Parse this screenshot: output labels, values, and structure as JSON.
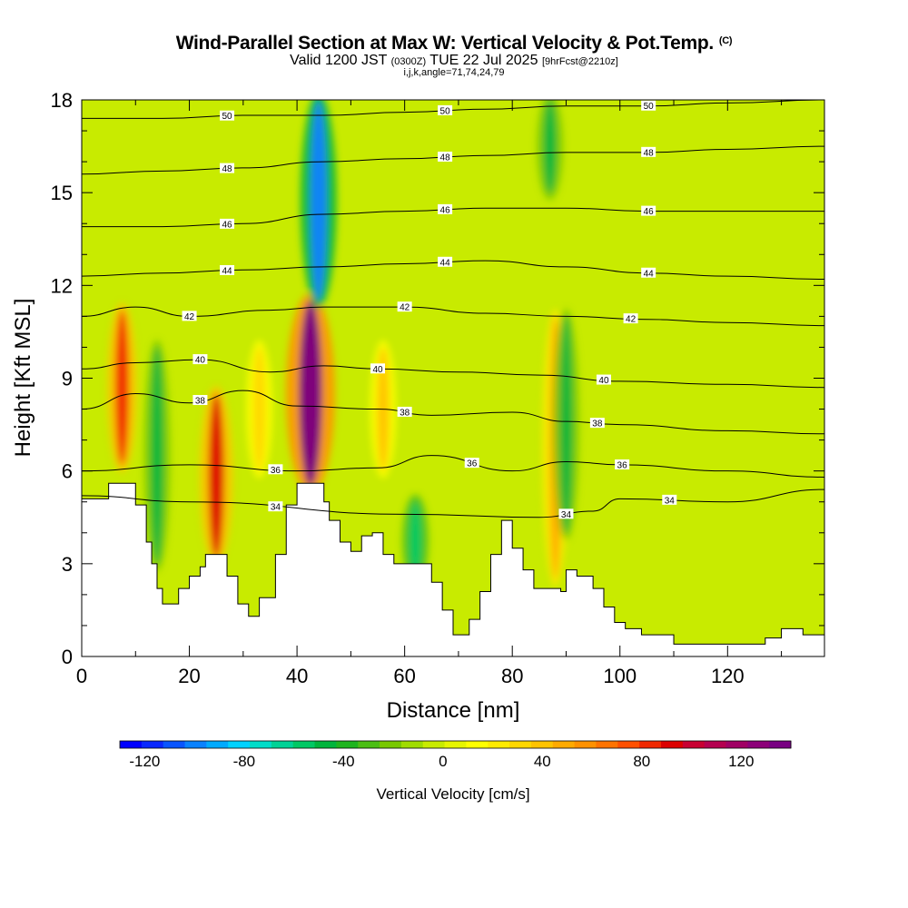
{
  "header": {
    "title": "Wind-Parallel Section at Max W: Vertical Velocity & Pot.Temp.",
    "copyright_mark": "(C)",
    "valid_prefix": "Valid 1200 JST",
    "valid_utc": "(0300Z)",
    "valid_date": "TUE 22 Jul 2025",
    "forecast_info": "[9hrFcst@2210z]",
    "index_info": "i,j,k,angle=71,74,24,79"
  },
  "chart_data": {
    "type": "heatmap",
    "title": "Wind-Parallel Section at Max W: Vertical Velocity & Pot.Temp.",
    "xlabel": "Distance [nm]",
    "ylabel": "Height [Kft MSL]",
    "xlim": [
      0,
      138
    ],
    "ylim": [
      0,
      18
    ],
    "x_ticks": [
      "0",
      "20",
      "40",
      "60",
      "80",
      "100",
      "120"
    ],
    "y_ticks": [
      "0",
      "3",
      "6",
      "9",
      "12",
      "15",
      "18"
    ],
    "colorbar": {
      "label": "Vertical Velocity [cm/s]",
      "tick_labels": [
        "-120",
        "-80",
        "-40",
        "0",
        "40",
        "80",
        "120"
      ],
      "range": [
        -130,
        140
      ],
      "colors": [
        "#0000ff",
        "#0a28ff",
        "#0a55ff",
        "#0a82ff",
        "#00aaff",
        "#00d2ff",
        "#00dcc8",
        "#00d296",
        "#00c864",
        "#00b43c",
        "#1eb41e",
        "#4bbe14",
        "#78c800",
        "#a0dc00",
        "#c8eb00",
        "#e6f500",
        "#ffff00",
        "#ffeb00",
        "#ffd700",
        "#ffc300",
        "#ffaa00",
        "#ff9100",
        "#ff7300",
        "#ff5000",
        "#f02800",
        "#dc0000",
        "#c80032",
        "#b40050",
        "#a00064",
        "#8c0078",
        "#780082"
      ]
    },
    "updrafts": [
      {
        "x": 7.5,
        "z_bottom": 6.2,
        "z_top": 11.2,
        "w": 80
      },
      {
        "x": 25,
        "z_bottom": 3.2,
        "z_top": 8.5,
        "w": 90
      },
      {
        "x": 42.5,
        "z_bottom": 5.5,
        "z_top": 11.5,
        "w": 135
      },
      {
        "x": 88,
        "z_bottom": 2.5,
        "z_top": 11,
        "w": 50
      },
      {
        "x": 56,
        "z_bottom": 6,
        "z_top": 10,
        "w": 40
      },
      {
        "x": 33,
        "z_bottom": 6,
        "z_top": 10,
        "w": 35
      }
    ],
    "downdrafts": [
      {
        "x": 44,
        "z_bottom": 11.5,
        "z_top": 18,
        "w": -100
      },
      {
        "x": 62,
        "z_bottom": 2.5,
        "z_top": 5,
        "w": -60
      },
      {
        "x": 90,
        "z_bottom": 4,
        "z_top": 11,
        "w": -50
      },
      {
        "x": 87,
        "z_bottom": 15,
        "z_top": 18,
        "w": -45
      },
      {
        "x": 14,
        "z_bottom": 3,
        "z_top": 10,
        "w": -45
      }
    ],
    "terrain_profile_kft": [
      [
        0,
        5.1
      ],
      [
        3,
        5.1
      ],
      [
        5,
        5.6
      ],
      [
        9,
        5.6
      ],
      [
        10,
        4.9
      ],
      [
        12,
        3.7
      ],
      [
        13,
        3.0
      ],
      [
        14,
        2.2
      ],
      [
        15,
        1.7
      ],
      [
        17,
        1.7
      ],
      [
        18,
        2.2
      ],
      [
        20,
        2.6
      ],
      [
        22,
        2.9
      ],
      [
        23,
        3.3
      ],
      [
        26,
        3.3
      ],
      [
        27,
        2.6
      ],
      [
        29,
        1.7
      ],
      [
        31,
        1.3
      ],
      [
        33,
        1.9
      ],
      [
        36,
        3.3
      ],
      [
        38,
        4.9
      ],
      [
        40,
        5.6
      ],
      [
        42,
        5.6
      ],
      [
        45,
        5.0
      ],
      [
        46,
        4.4
      ],
      [
        48,
        3.7
      ],
      [
        50,
        3.4
      ],
      [
        52,
        3.9
      ],
      [
        54,
        4.0
      ],
      [
        56,
        3.3
      ],
      [
        58,
        3.0
      ],
      [
        61,
        3.0
      ],
      [
        63,
        3.0
      ],
      [
        65,
        2.4
      ],
      [
        67,
        1.5
      ],
      [
        69,
        0.7
      ],
      [
        71,
        0.7
      ],
      [
        72,
        1.2
      ],
      [
        74,
        2.1
      ],
      [
        76,
        3.3
      ],
      [
        78,
        4.4
      ],
      [
        80,
        3.5
      ],
      [
        82,
        2.8
      ],
      [
        84,
        2.2
      ],
      [
        87,
        2.2
      ],
      [
        89,
        2.1
      ],
      [
        90,
        2.8
      ],
      [
        92,
        2.6
      ],
      [
        95,
        2.2
      ],
      [
        97,
        1.6
      ],
      [
        99,
        1.1
      ],
      [
        101,
        0.9
      ],
      [
        104,
        0.7
      ],
      [
        106,
        0.7
      ],
      [
        108,
        0.7
      ],
      [
        110,
        0.4
      ],
      [
        112,
        0.4
      ],
      [
        115,
        0.4
      ],
      [
        118,
        0.4
      ],
      [
        121,
        0.4
      ],
      [
        124,
        0.4
      ],
      [
        127,
        0.6
      ],
      [
        130,
        0.9
      ],
      [
        134,
        0.7
      ],
      [
        138,
        0.7
      ]
    ],
    "isentropes": [
      {
        "theta": 34,
        "label": "34",
        "points": [
          [
            0,
            5.2
          ],
          [
            20,
            5.0
          ],
          [
            60,
            4.6
          ],
          [
            85,
            4.5
          ],
          [
            95,
            4.7
          ],
          [
            100,
            5.1
          ],
          [
            120,
            5.0
          ],
          [
            138,
            5.4
          ]
        ]
      },
      {
        "theta": 36,
        "label": "36",
        "points": [
          [
            0,
            6.0
          ],
          [
            20,
            6.2
          ],
          [
            40,
            6.0
          ],
          [
            55,
            6.1
          ],
          [
            65,
            6.5
          ],
          [
            80,
            6.0
          ],
          [
            90,
            6.3
          ],
          [
            100,
            6.2
          ],
          [
            120,
            6.0
          ],
          [
            138,
            5.8
          ]
        ]
      },
      {
        "theta": 38,
        "label": "38",
        "points": [
          [
            0,
            8.0
          ],
          [
            10,
            8.5
          ],
          [
            20,
            8.2
          ],
          [
            30,
            8.6
          ],
          [
            40,
            8.1
          ],
          [
            55,
            8.0
          ],
          [
            65,
            7.8
          ],
          [
            80,
            7.9
          ],
          [
            90,
            7.6
          ],
          [
            100,
            7.5
          ],
          [
            120,
            7.3
          ],
          [
            138,
            7.2
          ]
        ]
      },
      {
        "theta": 40,
        "label": "40",
        "points": [
          [
            0,
            9.3
          ],
          [
            10,
            9.5
          ],
          [
            22,
            9.6
          ],
          [
            35,
            9.2
          ],
          [
            45,
            9.4
          ],
          [
            55,
            9.3
          ],
          [
            70,
            9.2
          ],
          [
            85,
            9.1
          ],
          [
            100,
            8.9
          ],
          [
            120,
            8.8
          ],
          [
            138,
            8.7
          ]
        ]
      },
      {
        "theta": 42,
        "label": "42",
        "points": [
          [
            0,
            11.0
          ],
          [
            10,
            11.3
          ],
          [
            20,
            11.0
          ],
          [
            35,
            11.2
          ],
          [
            45,
            11.3
          ],
          [
            60,
            11.3
          ],
          [
            75,
            11.1
          ],
          [
            90,
            11.0
          ],
          [
            105,
            10.9
          ],
          [
            120,
            10.8
          ],
          [
            138,
            10.7
          ]
        ]
      },
      {
        "theta": 44,
        "label": "44",
        "points": [
          [
            0,
            12.3
          ],
          [
            15,
            12.4
          ],
          [
            30,
            12.5
          ],
          [
            45,
            12.6
          ],
          [
            60,
            12.7
          ],
          [
            75,
            12.8
          ],
          [
            90,
            12.6
          ],
          [
            105,
            12.4
          ],
          [
            120,
            12.3
          ],
          [
            138,
            12.2
          ]
        ]
      },
      {
        "theta": 46,
        "label": "46",
        "points": [
          [
            0,
            13.9
          ],
          [
            15,
            13.9
          ],
          [
            30,
            14.0
          ],
          [
            45,
            14.3
          ],
          [
            60,
            14.4
          ],
          [
            75,
            14.5
          ],
          [
            90,
            14.5
          ],
          [
            105,
            14.4
          ],
          [
            120,
            14.4
          ],
          [
            138,
            14.4
          ]
        ]
      },
      {
        "theta": 48,
        "label": "48",
        "points": [
          [
            0,
            15.6
          ],
          [
            15,
            15.7
          ],
          [
            30,
            15.8
          ],
          [
            45,
            16.0
          ],
          [
            60,
            16.1
          ],
          [
            75,
            16.2
          ],
          [
            90,
            16.3
          ],
          [
            105,
            16.3
          ],
          [
            120,
            16.4
          ],
          [
            138,
            16.5
          ]
        ]
      },
      {
        "theta": 50,
        "label": "50",
        "points": [
          [
            0,
            17.4
          ],
          [
            15,
            17.4
          ],
          [
            30,
            17.5
          ],
          [
            45,
            17.5
          ],
          [
            60,
            17.6
          ],
          [
            75,
            17.7
          ],
          [
            90,
            17.8
          ],
          [
            105,
            17.8
          ],
          [
            120,
            17.9
          ],
          [
            138,
            18.0
          ]
        ]
      }
    ],
    "grid": false,
    "legend": "colorbar-bottom"
  }
}
